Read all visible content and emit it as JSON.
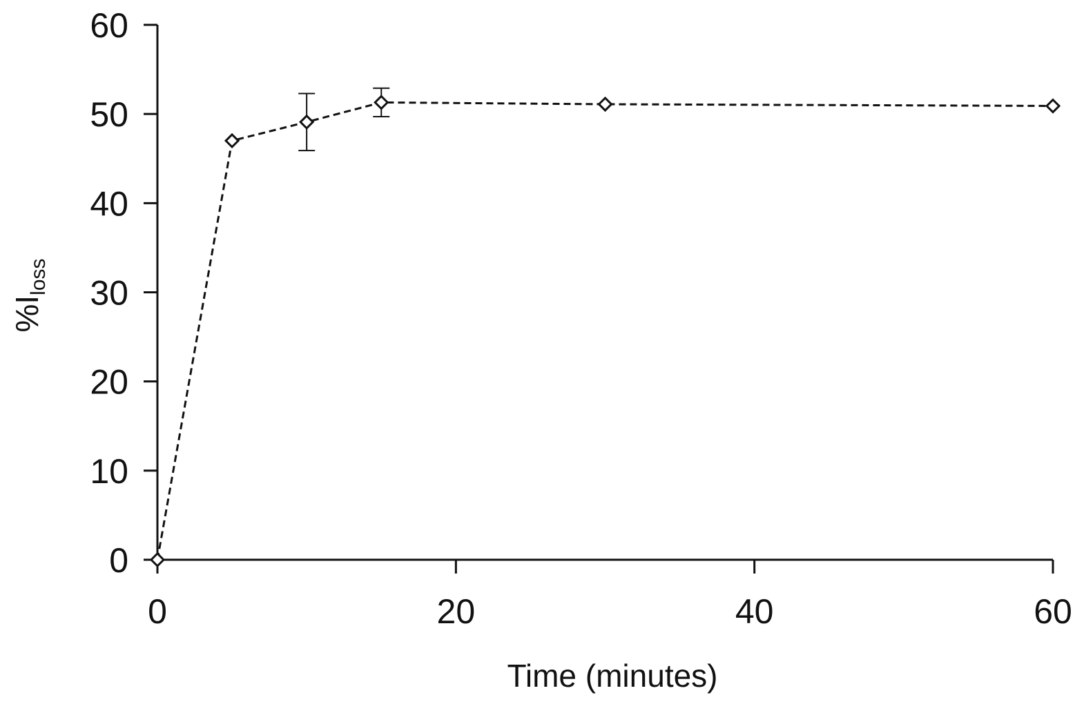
{
  "chart_data": {
    "type": "line",
    "title": "",
    "xlabel": "Time (minutes)",
    "ylabel": {
      "main": "%I",
      "subscript": "loss"
    },
    "xlim": [
      0,
      60
    ],
    "ylim": [
      0,
      60
    ],
    "xticks": [
      0,
      20,
      40,
      60
    ],
    "yticks": [
      0,
      10,
      20,
      30,
      40,
      50,
      60
    ],
    "grid": false,
    "legend": "none",
    "series": [
      {
        "marker": "diamond-open",
        "line_style": "dashed",
        "color": "#111111",
        "x": [
          0,
          5,
          10,
          15,
          30,
          60
        ],
        "y": [
          0,
          47.0,
          49.1,
          51.3,
          51.1,
          50.9
        ],
        "error": [
          0,
          0,
          3.2,
          1.6,
          0,
          0
        ]
      }
    ]
  }
}
